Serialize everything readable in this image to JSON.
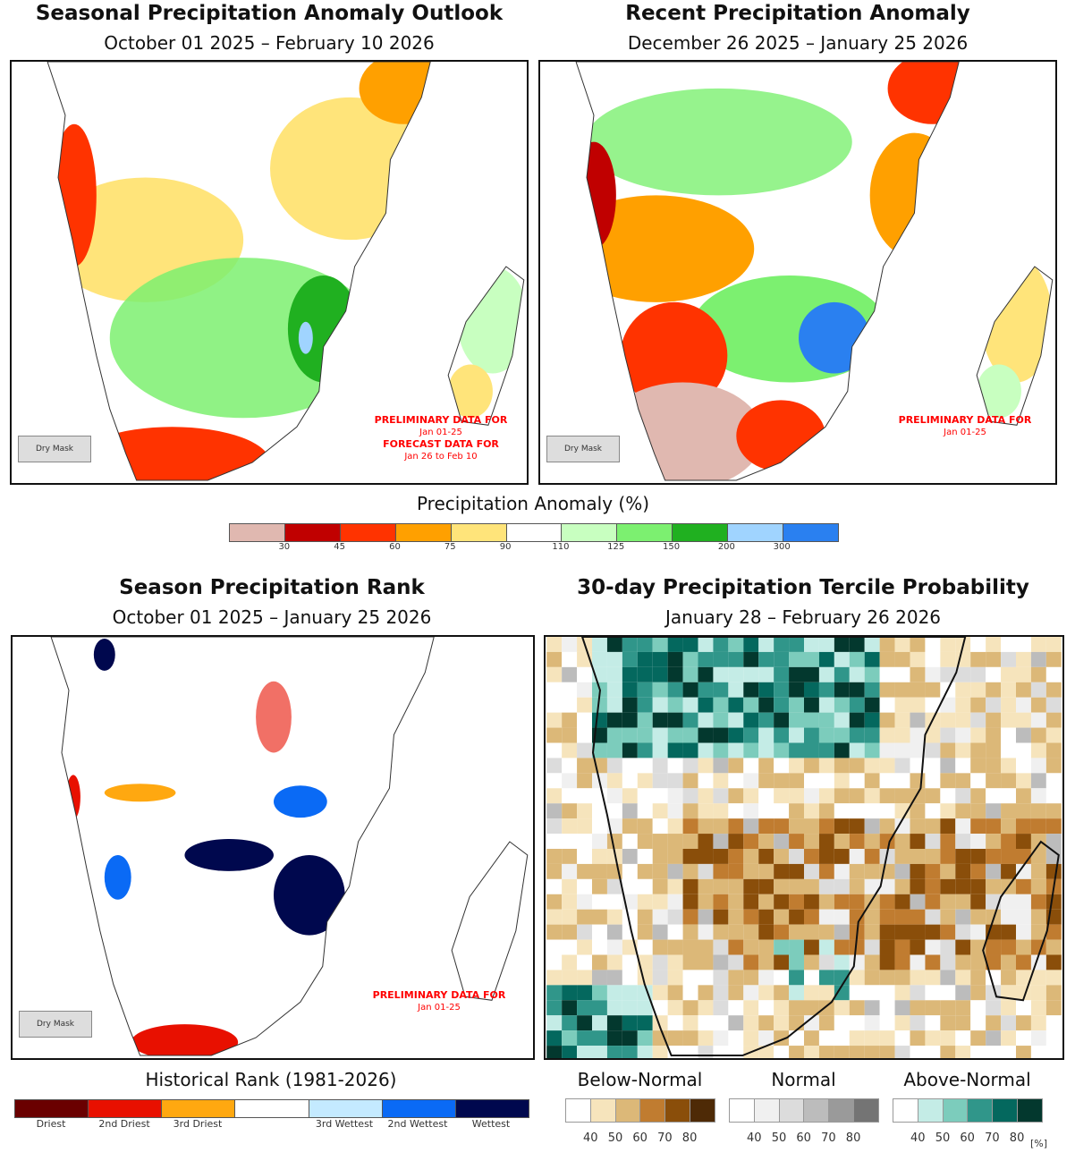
{
  "panels": {
    "seasonal_anomaly": {
      "title": "Seasonal Precipitation Anomaly Outlook",
      "subtitle": "October 01 2025 – February 10 2026",
      "note_line1": "PRELIMINARY DATA FOR",
      "note_line2": "Jan 01-25",
      "note_line3": "FORECAST DATA FOR",
      "note_line4": "Jan 26 to Feb 10",
      "dry_mask": "Dry Mask"
    },
    "recent_anomaly": {
      "title": "Recent Precipitation Anomaly",
      "subtitle": "December 26 2025 – January 25 2026",
      "note_line1": "PRELIMINARY DATA FOR",
      "note_line2": "Jan 01-25",
      "dry_mask": "Dry Mask"
    },
    "season_rank": {
      "title": "Season Precipitation Rank",
      "subtitle": "October 01 2025 – January 25 2026",
      "note_line1": "PRELIMINARY DATA FOR",
      "note_line2": "Jan 01-25",
      "dry_mask": "Dry Mask"
    },
    "tercile": {
      "title": "30-day Precipitation Tercile Probability",
      "subtitle": "January 28 – February 26 2026"
    }
  },
  "anomaly_legend": {
    "title": "Precipitation Anomaly (%)",
    "colors": [
      "#e0b8b0",
      "#c00000",
      "#ff3300",
      "#ffa000",
      "#ffe47a",
      "#ffffff",
      "#c8ffc0",
      "#7cf070",
      "#20b020",
      "#a0d4ff",
      "#2a80f0"
    ],
    "ticks": [
      "30",
      "45",
      "60",
      "75",
      "90",
      "110",
      "125",
      "150",
      "200",
      "300"
    ]
  },
  "rank_legend": {
    "title": "Historical Rank (1981-2026)",
    "colors": [
      "#6a0000",
      "#e81000",
      "#ffa810",
      "#ffffff",
      "#c4eaff",
      "#0a6af5",
      "#00084e"
    ],
    "labels": [
      "Driest",
      "2nd Driest",
      "3rd Driest",
      "",
      "3rd Wettest",
      "2nd Wettest",
      "Wettest"
    ]
  },
  "tercile_legend": {
    "groups": [
      {
        "title": "Below-Normal",
        "colors": [
          "#ffffff",
          "#f6e4bc",
          "#dcb878",
          "#c07c30",
          "#8a4e0a",
          "#4e2a06"
        ]
      },
      {
        "title": "Normal",
        "colors": [
          "#ffffff",
          "#f0f0f0",
          "#dcdcdc",
          "#bcbcbc",
          "#9a9a9a",
          "#747474"
        ]
      },
      {
        "title": "Above-Normal",
        "colors": [
          "#ffffff",
          "#c4ece6",
          "#7cccbc",
          "#30968a",
          "#04685e",
          "#03382e"
        ]
      }
    ],
    "ticks": [
      "40",
      "50",
      "60",
      "70",
      "80"
    ],
    "unit": "[%]"
  }
}
